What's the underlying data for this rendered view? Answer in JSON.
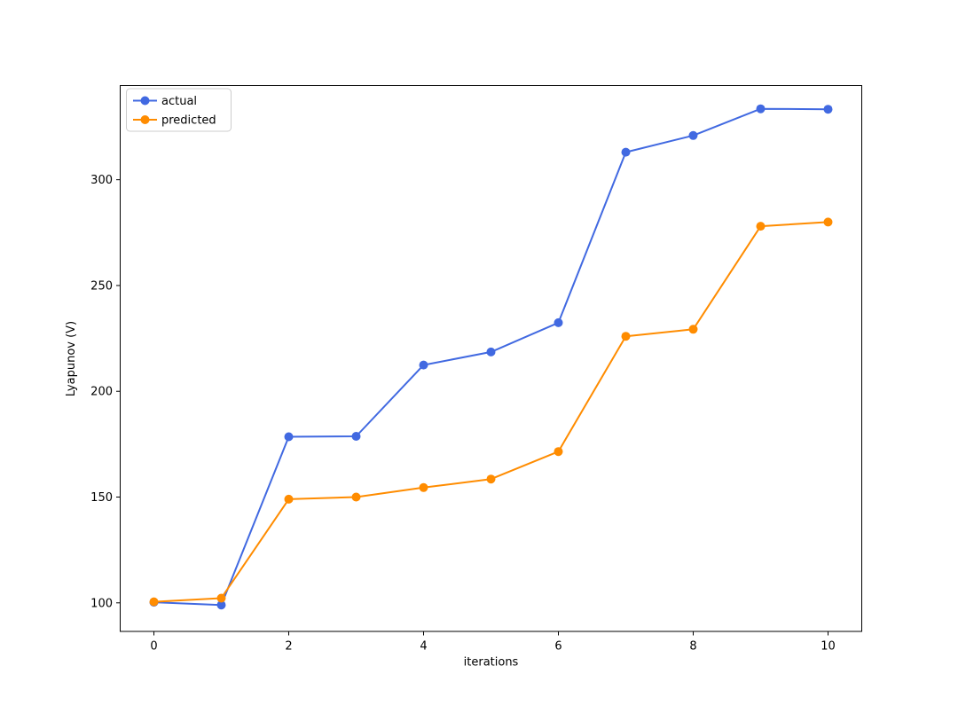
{
  "chart_data": {
    "type": "line",
    "title": "",
    "xlabel": "iterations",
    "ylabel": "Lyapunov (V)",
    "x": [
      0,
      1,
      2,
      3,
      4,
      5,
      6,
      7,
      8,
      9,
      10
    ],
    "series": [
      {
        "name": "actual",
        "color": "#4169e1",
        "marker": "circle",
        "values": [
          100.3,
          99.0,
          178.5,
          178.7,
          212.4,
          218.6,
          232.4,
          313.0,
          320.9,
          333.5,
          333.3
        ]
      },
      {
        "name": "predicted",
        "color": "#ff8c00",
        "marker": "circle",
        "values": [
          100.5,
          102.2,
          149.0,
          150.0,
          154.5,
          158.5,
          171.5,
          226.0,
          229.3,
          278.0,
          280.0
        ]
      }
    ],
    "xticks": [
      0,
      2,
      4,
      6,
      8,
      10
    ],
    "yticks": [
      100,
      150,
      200,
      250,
      300
    ],
    "xlim": [
      -0.5,
      10.5
    ],
    "ylim": [
      86.5,
      344.5
    ],
    "grid": false,
    "legend_position": "upper left",
    "background_color": "#ffffff",
    "spine_color": "#000000",
    "legend_border_color": "#cccccc"
  }
}
